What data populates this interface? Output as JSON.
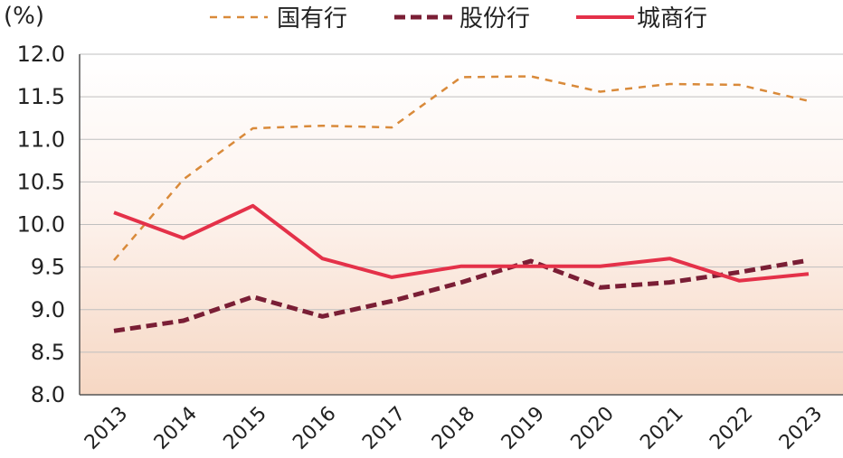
{
  "chart_data": {
    "type": "line",
    "unit_label": "(%)",
    "categories": [
      "2013",
      "2014",
      "2015",
      "2016",
      "2017",
      "2018",
      "2019",
      "2020",
      "2021",
      "2022",
      "2023"
    ],
    "ylim": [
      8.0,
      12.0
    ],
    "yticks": [
      "8.0",
      "8.5",
      "9.0",
      "9.5",
      "10.0",
      "10.5",
      "11.0",
      "11.5",
      "12.0"
    ],
    "grid": true,
    "legend_position": "top",
    "series": [
      {
        "name": "国有行",
        "color": "#d98a3a",
        "style": "dashed-thin",
        "values": [
          9.58,
          10.53,
          11.13,
          11.16,
          11.14,
          11.73,
          11.74,
          11.56,
          11.65,
          11.64,
          11.45
        ]
      },
      {
        "name": "股份行",
        "color": "#7a1e35",
        "style": "dashed-thick",
        "values": [
          8.75,
          8.87,
          9.15,
          8.92,
          9.1,
          9.32,
          9.57,
          9.26,
          9.32,
          9.44,
          9.58
        ]
      },
      {
        "name": "城商行",
        "color": "#e43149",
        "style": "solid",
        "values": [
          10.14,
          9.84,
          10.22,
          9.6,
          9.38,
          9.51,
          9.51,
          9.51,
          9.6,
          9.34,
          9.42
        ]
      }
    ]
  }
}
